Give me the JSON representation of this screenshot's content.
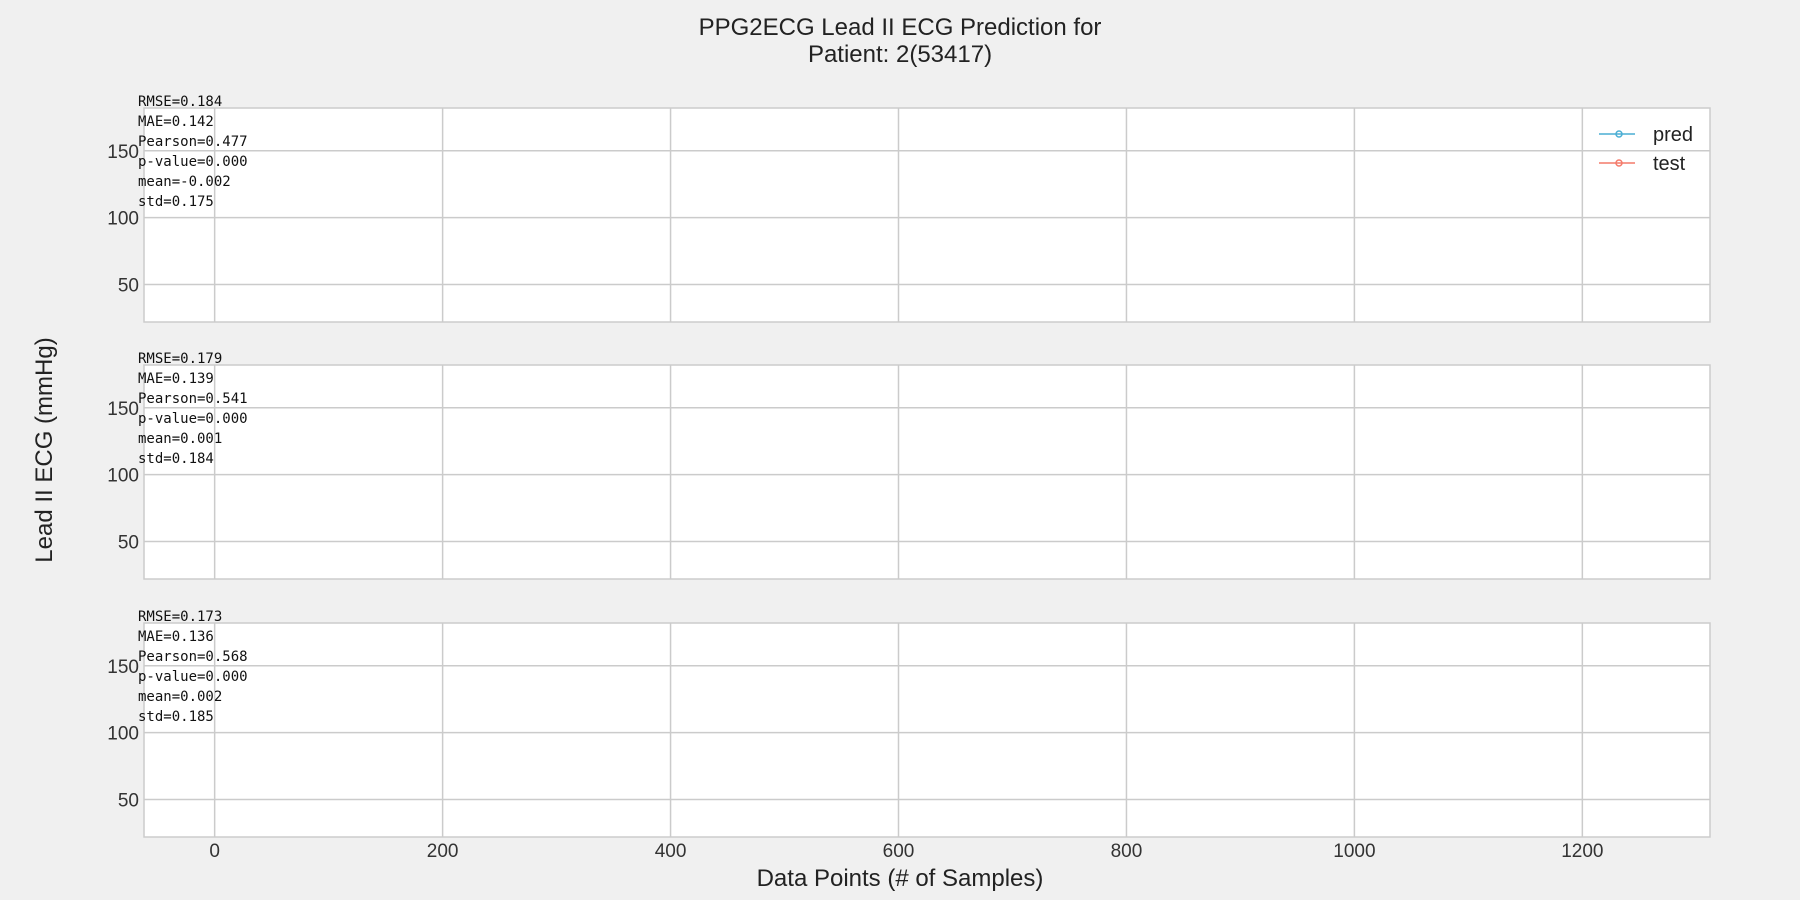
{
  "chart_data": {
    "type": "line",
    "title": [
      "PPG2ECG Lead II ECG Prediction for",
      "Patient: 2(53417)"
    ],
    "xlabel": "Data Points (# of Samples)",
    "ylabel": "Lead II ECG (mmHg)",
    "xlim": [
      -62,
      1312
    ],
    "ylim": [
      22,
      182
    ],
    "x_ticks": [
      0,
      200,
      400,
      600,
      800,
      1000,
      1200
    ],
    "y_ticks": [
      50,
      100,
      150
    ],
    "grid": true,
    "legend_position": "top-right",
    "legend": [
      {
        "name": "pred",
        "color": "#4aaed4"
      },
      {
        "name": "test",
        "color": "#f47a6a"
      }
    ],
    "subplots": [
      {
        "stats": [
          "RMSE=0.184",
          "MAE=0.142",
          "Pearson=0.477",
          "p-value=0.000",
          "mean=-0.002",
          "std=0.175"
        ],
        "series": [
          {
            "name": "pred",
            "values": []
          },
          {
            "name": "test",
            "values": []
          }
        ]
      },
      {
        "stats": [
          "RMSE=0.179",
          "MAE=0.139",
          "Pearson=0.541",
          "p-value=0.000",
          "mean=0.001",
          "std=0.184"
        ],
        "series": [
          {
            "name": "pred",
            "values": []
          },
          {
            "name": "test",
            "values": []
          }
        ]
      },
      {
        "stats": [
          "RMSE=0.173",
          "MAE=0.136",
          "Pearson=0.568",
          "p-value=0.000",
          "mean=0.002",
          "std=0.185"
        ],
        "series": [
          {
            "name": "pred",
            "values": []
          },
          {
            "name": "test",
            "values": []
          }
        ]
      }
    ]
  }
}
